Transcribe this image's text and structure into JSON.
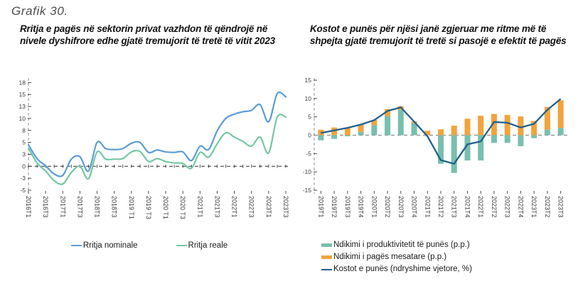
{
  "figure": {
    "label": "Grafik 30."
  },
  "chart_data": [
    {
      "id": "private-sector-wage-growth",
      "type": "line",
      "title": "Rritja e pagës në sektorin privat vazhdon të qëndrojë në nivele dyshifrore edhe gjatë tremujorit të tretë të vitit 2023",
      "x_count": 31,
      "x_labels": [
        "2016T1",
        "2016T3",
        "2017T1",
        "2017T3",
        "2018T1",
        "2018T3",
        "2019 T1",
        "2019 T3",
        "2020 T1",
        "2020 T3",
        "2021T1",
        "2021T3",
        "2022T1",
        "2022T3",
        "2023T1",
        "2023T3"
      ],
      "x_label_step": 2,
      "ylim": [
        -5,
        18
      ],
      "grid": false,
      "legend_position": "bottom",
      "yticks": [
        {
          "label": "18",
          "value": 17.5
        },
        {
          "label": "15",
          "value": 15
        },
        {
          "label": "13",
          "value": 12.5
        },
        {
          "label": "10",
          "value": 10
        },
        {
          "label": "8",
          "value": 7.5
        },
        {
          "label": "5",
          "value": 5
        },
        {
          "label": "3",
          "value": 2.5
        },
        {
          "label": "0",
          "value": 0
        },
        {
          "label": "-3",
          "value": -2.5
        },
        {
          "label": "-5",
          "value": -5
        }
      ],
      "series": [
        {
          "name": "Rritja nominale",
          "type": "line",
          "color": "#5B9CD6",
          "values": [
            4.5,
            1.6,
            0.1,
            -1.6,
            -1.9,
            1.5,
            2.0,
            -1.0,
            5.0,
            3.7,
            3.5,
            3.7,
            4.8,
            5.0,
            2.9,
            3.4,
            3.0,
            2.9,
            3.0,
            1.2,
            4.2,
            3.5,
            7.4,
            10.0,
            10.9,
            11.4,
            11.7,
            12.9,
            9.3,
            15.2,
            14.5
          ]
        },
        {
          "name": "Rritja reale",
          "type": "line",
          "color": "#74C7A3",
          "values": [
            3.8,
            0.7,
            -1.0,
            -3.0,
            -3.7,
            -1.3,
            0.0,
            -2.6,
            3.0,
            1.5,
            1.5,
            1.6,
            3.0,
            3.1,
            1.0,
            1.6,
            1.0,
            0.7,
            0.6,
            -0.4,
            2.9,
            1.9,
            4.7,
            7.0,
            6.1,
            5.2,
            4.2,
            6.1,
            2.8,
            10.3,
            10.3
          ]
        }
      ]
    },
    {
      "id": "unit-labour-costs",
      "type": "bar-line",
      "title": "Kostot e punës për njësi janë zgjeruar me ritme më të shpejta gjatë tremujorit të tretë si pasojë e efektit të pagës",
      "x_count": 19,
      "x_labels": [
        "2019T1",
        "2019T2",
        "2019T3",
        "2019T4",
        "2020T1",
        "2020T2",
        "2020T3",
        "2020T4",
        "2021T1",
        "2021T2",
        "2021T3",
        "2021T4",
        "2022T1",
        "2022T2",
        "2022T3",
        "2022T4",
        "2023T1",
        "2023T2",
        "2023T3"
      ],
      "x_label_step": 1,
      "ylim": [
        -15,
        15
      ],
      "grid": false,
      "legend_position": "bottom-left",
      "yticks": [
        {
          "label": "15",
          "value": 15
        },
        {
          "label": "10",
          "value": 10
        },
        {
          "label": "5",
          "value": 5
        },
        {
          "label": "0",
          "value": 0
        },
        {
          "label": "-5",
          "value": -5
        },
        {
          "label": "-10",
          "value": -10
        },
        {
          "label": "-15",
          "value": -15
        }
      ],
      "series": [
        {
          "name": "Ndikimi i produktivitetit të punës (p.p.)",
          "type": "bar",
          "color": "#78BFAE",
          "values": [
            -1.4,
            -1.0,
            -0.3,
            0.9,
            2.7,
            5.2,
            6.9,
            3.3,
            0.0,
            -7.8,
            -10.3,
            -6.9,
            -6.9,
            -2.1,
            -2.1,
            -3.0,
            -0.8,
            1.5,
            2.0
          ]
        },
        {
          "name": "Ndikimi i pagës mesatare (p.p.)",
          "type": "bar",
          "color": "#F2A33C",
          "values": [
            1.5,
            2.1,
            2.1,
            2.1,
            1.5,
            1.9,
            1.0,
            0.5,
            1.2,
            1.6,
            2.6,
            4.5,
            5.3,
            5.8,
            5.5,
            5.1,
            3.9,
            6.2,
            7.5
          ]
        },
        {
          "name": "Kostot e punës (ndryshime vjetore, %)",
          "type": "line",
          "color": "#20618F",
          "values": [
            0.6,
            1.3,
            2.0,
            2.9,
            4.1,
            6.6,
            7.6,
            3.7,
            -0.3,
            -6.8,
            -7.8,
            -2.5,
            -1.7,
            3.6,
            3.4,
            2.1,
            3.1,
            6.9,
            9.9
          ]
        }
      ]
    }
  ]
}
